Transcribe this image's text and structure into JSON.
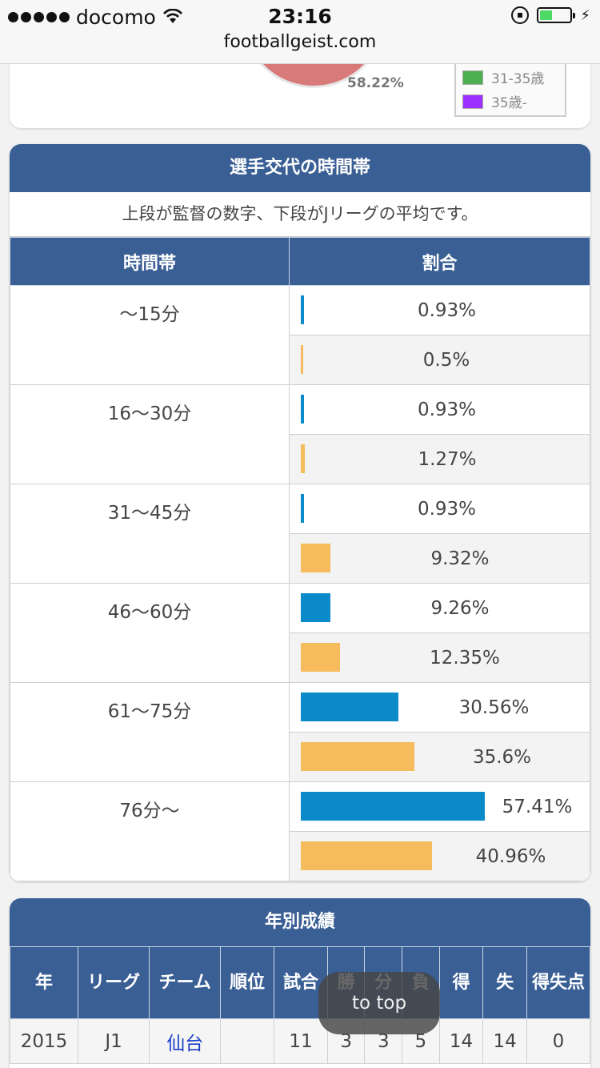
{
  "status": {
    "carrier": "docomo",
    "time": "23:16",
    "url": "footballgeist.com"
  },
  "prev_card": {
    "pie_label": "58.22%",
    "legend": [
      {
        "label": "31-35歳",
        "color": "#4caf50"
      },
      {
        "label": "35歳-",
        "color": "#9b30ff"
      }
    ]
  },
  "slots_card": {
    "title": "選手交代の時間帯",
    "note": "上段が監督の数字、下段がJリーグの平均です。",
    "headers": {
      "slot": "時間帯",
      "ratio": "割合"
    },
    "colors": {
      "manager": "#0a8ac8",
      "league": "#f6bb5c"
    },
    "rows": [
      {
        "label": "〜15分",
        "manager": 0.93,
        "manager_text": "0.93%",
        "league": 0.5,
        "league_text": "0.5%"
      },
      {
        "label": "16〜30分",
        "manager": 0.93,
        "manager_text": "0.93%",
        "league": 1.27,
        "league_text": "1.27%"
      },
      {
        "label": "31〜45分",
        "manager": 0.93,
        "manager_text": "0.93%",
        "league": 9.32,
        "league_text": "9.32%"
      },
      {
        "label": "46〜60分",
        "manager": 9.26,
        "manager_text": "9.26%",
        "league": 12.35,
        "league_text": "12.35%"
      },
      {
        "label": "61〜75分",
        "manager": 30.56,
        "manager_text": "30.56%",
        "league": 35.6,
        "league_text": "35.6%"
      },
      {
        "label": "76分〜",
        "manager": 57.41,
        "manager_text": "57.41%",
        "league": 40.96,
        "league_text": "40.96%"
      }
    ]
  },
  "yearly_card": {
    "title": "年別成績",
    "headers": [
      "年",
      "リーグ",
      "チーム",
      "順位",
      "試合",
      "勝",
      "分",
      "負",
      "得",
      "失",
      "得失点"
    ],
    "rows": [
      [
        "2015",
        "J1",
        "仙台",
        "",
        "11",
        "3",
        "3",
        "5",
        "14",
        "14",
        "0"
      ]
    ]
  },
  "to_top_label": "to top"
}
